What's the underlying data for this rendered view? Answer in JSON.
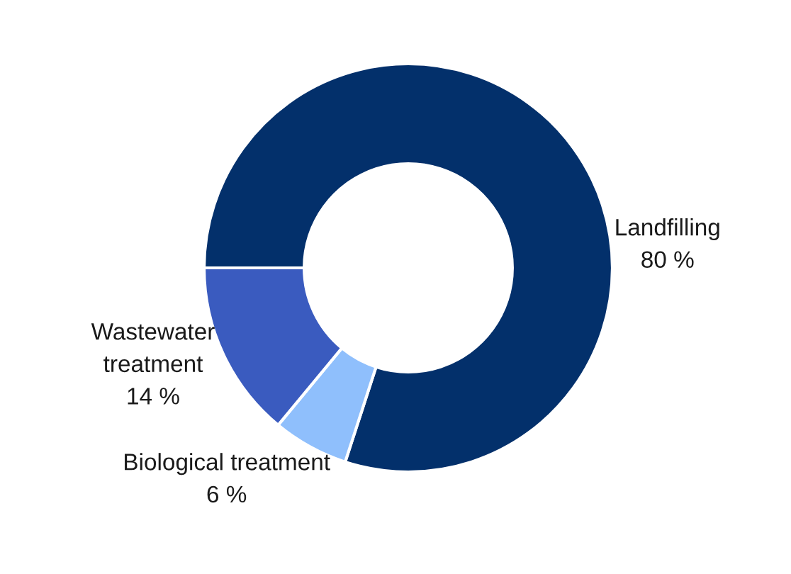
{
  "chart_data": {
    "type": "donut",
    "categories": [
      "Landfilling",
      "Biological treatment",
      "Wastewater\ntreatment"
    ],
    "values": [
      80,
      6,
      14
    ],
    "colors": [
      "#03306b",
      "#8fbffc",
      "#3a5bbf"
    ],
    "value_labels": [
      "80 %",
      "6 %",
      "14 %"
    ]
  }
}
